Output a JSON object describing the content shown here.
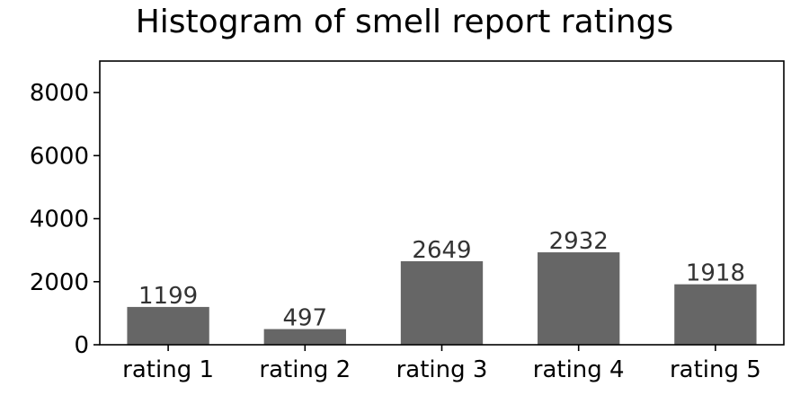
{
  "chart_data": {
    "type": "bar",
    "title": "Histogram of smell report ratings",
    "xlabel": "",
    "ylabel": "",
    "categories": [
      "rating 1",
      "rating 2",
      "rating 3",
      "rating 4",
      "rating 5"
    ],
    "values": [
      1199,
      497,
      2649,
      2932,
      1918
    ],
    "data_labels": [
      "1199",
      "497",
      "2649",
      "2932",
      "1918"
    ],
    "ylim": [
      0,
      9000
    ],
    "yticks": [
      0,
      2000,
      4000,
      6000,
      8000
    ],
    "ytick_labels": [
      "0",
      "2000",
      "4000",
      "6000",
      "8000"
    ],
    "grid": false,
    "legend": "none",
    "colors": {
      "bar": "#666666",
      "data_label": "#333333",
      "axis": "#000000"
    }
  }
}
